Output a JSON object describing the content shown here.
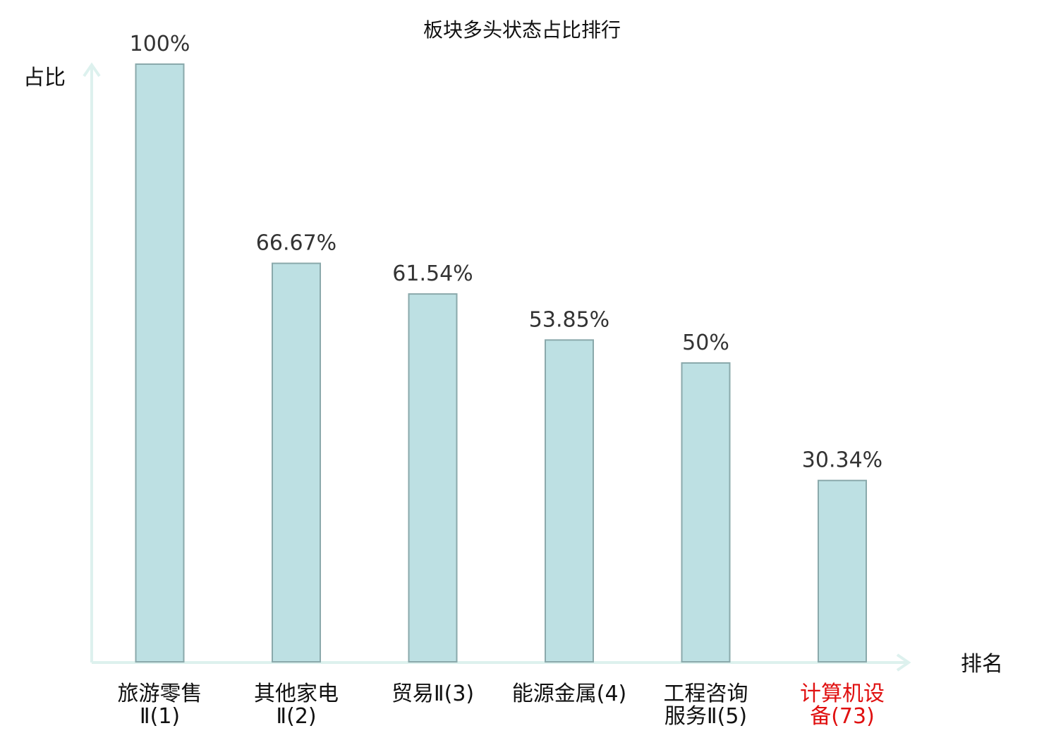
{
  "chart_data": {
    "type": "bar",
    "title": "板块多头状态占比排行",
    "ylabel": "占比",
    "xlabel": "排名",
    "ylim": [
      0,
      100
    ],
    "grid": false,
    "categories": [
      {
        "lines": [
          "旅游零售",
          "Ⅱ(1)"
        ],
        "highlight": false
      },
      {
        "lines": [
          "其他家电",
          "Ⅱ(2)"
        ],
        "highlight": false
      },
      {
        "lines": [
          "贸易Ⅱ(3)"
        ],
        "highlight": false
      },
      {
        "lines": [
          "能源金属(4)"
        ],
        "highlight": false
      },
      {
        "lines": [
          "工程咨询",
          "服务Ⅱ(5)"
        ],
        "highlight": false
      },
      {
        "lines": [
          "计算机设",
          "备(73)"
        ],
        "highlight": true
      }
    ],
    "values": [
      100,
      66.67,
      61.54,
      53.85,
      50,
      30.34
    ],
    "value_labels": [
      "100%",
      "66.67%",
      "61.54%",
      "53.85%",
      "50%",
      "30.34%"
    ],
    "colors": {
      "bar_fill": "#bde0e3",
      "bar_stroke": "#8aa9ab",
      "axis": "#ddf1ee",
      "label_normal": "#111111",
      "label_highlight": "#e01010"
    }
  }
}
